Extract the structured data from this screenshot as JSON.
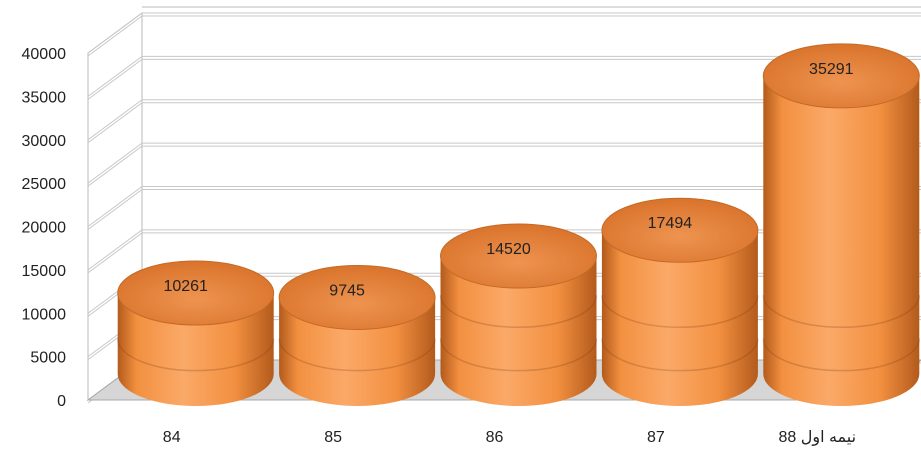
{
  "chart_data": {
    "type": "bar",
    "style": "3d-cylinder",
    "categories": [
      "84",
      "85",
      "86",
      "87",
      "88 نیمه اول"
    ],
    "values": [
      10261,
      9745,
      14520,
      17494,
      35291
    ],
    "data_labels": [
      "10261",
      "9745",
      "14520",
      "17494",
      "35291"
    ],
    "ylim": [
      0,
      40000
    ],
    "y_ticks": [
      "0",
      "5000",
      "10000",
      "15000",
      "20000",
      "25000",
      "30000",
      "35000",
      "40000"
    ],
    "title": "",
    "xlabel": "",
    "ylabel": "",
    "grid": true,
    "legend": "none",
    "colors": {
      "bar_top": "#E8873E",
      "bar_body_light": "#FBA968",
      "bar_body_mid": "#F29040",
      "bar_body_dark": "#B35A1C",
      "grid_line": "#C8C8C8",
      "wall_line": "#B8B8B8"
    }
  }
}
